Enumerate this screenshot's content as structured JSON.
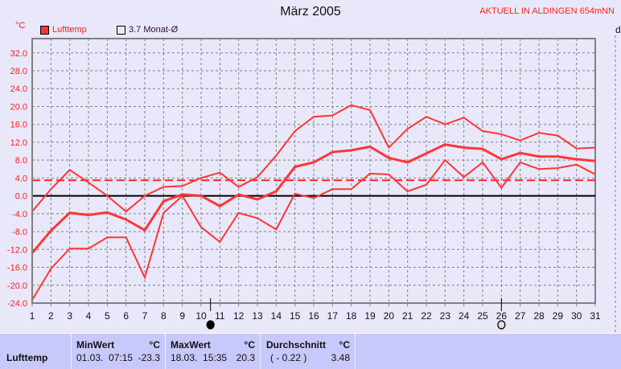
{
  "header": {
    "title": "März 2005",
    "station": "AKTUELL IN ALDINGEN 654mNN",
    "right_cut_label": "d"
  },
  "chart_data": {
    "type": "line",
    "title": "März 2005",
    "ylabel": "°C",
    "ylim": [
      -24,
      35.2
    ],
    "xlim": [
      1,
      31
    ],
    "grid": true,
    "legend_placement": "top-left",
    "legend": [
      "Lufttemp",
      "3.7 Monat-Ø"
    ],
    "x": [
      1,
      2,
      3,
      4,
      5,
      6,
      7,
      8,
      9,
      10,
      11,
      12,
      13,
      14,
      15,
      16,
      17,
      18,
      19,
      20,
      21,
      22,
      23,
      24,
      25,
      26,
      27,
      28,
      29,
      30,
      31
    ],
    "yticks": [
      "32.0",
      "28.0",
      "24.0",
      "20.0",
      "16.0",
      "12.0",
      "8.0",
      "4.0",
      "0.0",
      "-4.0",
      "-8.0",
      "-12.0",
      "-16.0",
      "-20.0",
      "-24.0"
    ],
    "series": [
      {
        "role": "max",
        "values": [
          -3.5,
          1.5,
          5.8,
          3.0,
          0,
          -3.5,
          0,
          2.0,
          2.2,
          4.0,
          5.2,
          2.0,
          4.2,
          9.0,
          14.5,
          17.7,
          18.0,
          20.3,
          19.2,
          10.8,
          15.0,
          17.7,
          16.0,
          17.5,
          14.5,
          13.8,
          12.4,
          14.1,
          13.5,
          10.6,
          10.8
        ]
      },
      {
        "role": "mean",
        "values": [
          -12.8,
          -7.8,
          -3.8,
          -4.3,
          -3.7,
          -5.3,
          -7.7,
          -1.2,
          0.3,
          0,
          -2.3,
          0.3,
          -0.8,
          1.0,
          6.5,
          7.5,
          9.8,
          10.2,
          11.0,
          8.5,
          7.5,
          9.5,
          11.5,
          10.8,
          10.5,
          8.2,
          9.6,
          8.8,
          8.8,
          8.2,
          7.8
        ]
      },
      {
        "role": "min",
        "values": [
          -23.3,
          -16.3,
          -11.8,
          -11.8,
          -9.3,
          -9.3,
          -18.3,
          -3.8,
          0,
          -7.0,
          -10.3,
          -3.8,
          -5.0,
          -7.5,
          0.5,
          -0.5,
          1.5,
          1.5,
          5.0,
          4.8,
          1.0,
          2.5,
          8.0,
          4.2,
          7.5,
          1.8,
          7.5,
          6.0,
          6.2,
          7.0,
          4.8
        ]
      }
    ],
    "monthly_mean_line": 3.48,
    "moon_phases": [
      {
        "day": 10.5,
        "phase": "full-moon-black"
      },
      {
        "day": 26,
        "phase": "new-moon-hollow"
      }
    ],
    "colors": {
      "series": "#ff3535",
      "zero": "#000000",
      "grid": "#808080",
      "ticks": "#ff2020"
    }
  },
  "stats": {
    "row_label": "Lufttemp",
    "min": {
      "label": "MinWert",
      "unit": "°C",
      "time": "01.03.  07:15",
      "value": "-23.3"
    },
    "max": {
      "label": "MaxWert",
      "unit": "°C",
      "time": "18.03.  15:35",
      "value": "20.3"
    },
    "avg": {
      "label": "Durchschnitt",
      "unit": "°C",
      "extra": "( - 0.22 )",
      "value": "3.48"
    }
  }
}
